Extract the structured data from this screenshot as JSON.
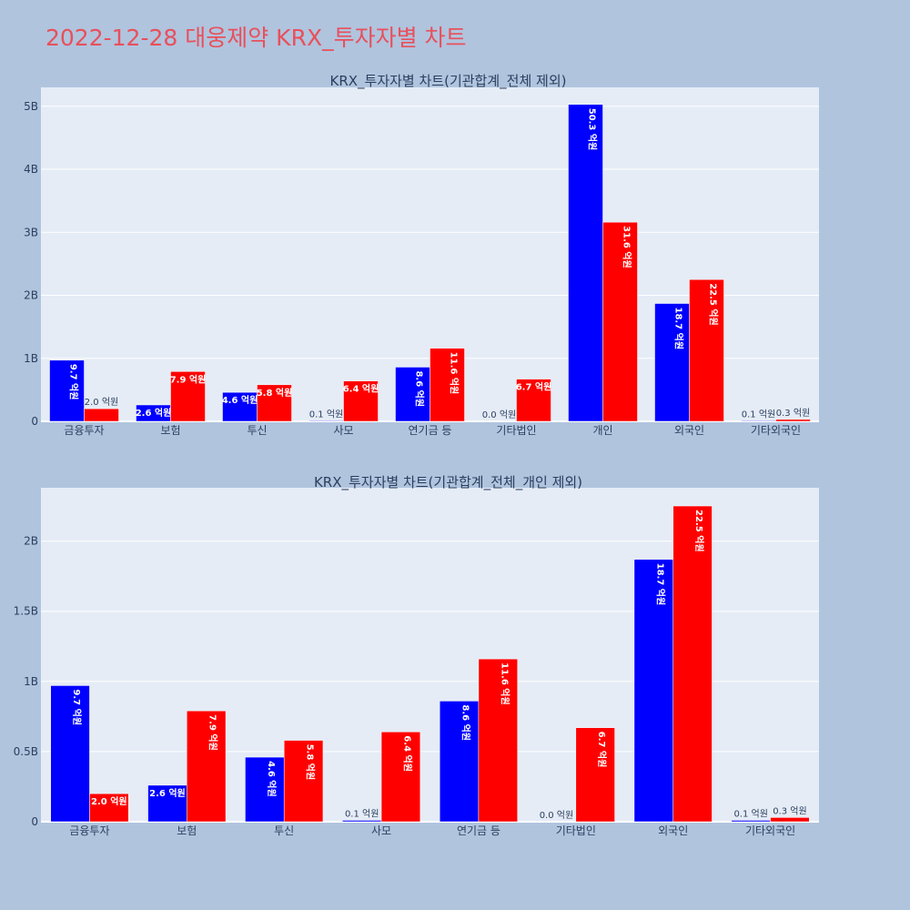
{
  "page": {
    "title": "2022-12-28 대웅제약 KRX_투자자별 차트"
  },
  "colors": {
    "background": "#b0c4de",
    "plot_bg": "#e5ecf6",
    "title": "#e8505b",
    "buy": "#0000ff",
    "sell": "#ff0000",
    "grid": "#ffffff",
    "text": "#2a3f5f"
  },
  "chart_data": [
    {
      "type": "bar",
      "title": "KRX_투자자별 차트(기관합계_전체 제외)",
      "categories": [
        "금융투자",
        "보험",
        "투신",
        "사모",
        "연기금 등",
        "기타법인",
        "개인",
        "외국인",
        "기타외국인"
      ],
      "series": [
        {
          "color": "#0000ff",
          "values": [
            970000000,
            260000000,
            460000000,
            10000000,
            860000000,
            0,
            5030000000,
            1870000000,
            10000000
          ],
          "labels": [
            "9.7 억원",
            "2.6 억원",
            "4.6 억원",
            "0.1 억원",
            "8.6 억원",
            "0.0 억원",
            "50.3 억원",
            "18.7 억원",
            "0.1 억원"
          ]
        },
        {
          "color": "#ff0000",
          "values": [
            200000000,
            790000000,
            580000000,
            640000000,
            1160000000,
            670000000,
            3160000000,
            2250000000,
            30000000
          ],
          "labels": [
            "2.0 억원",
            "7.9 억원",
            "5.8 억원",
            "6.4 억원",
            "11.6 억원",
            "6.7 억원",
            "31.6 억원",
            "22.5 억원",
            "0.3 억원"
          ]
        }
      ],
      "ylim": [
        0,
        5300000000
      ],
      "yticks": [
        0,
        1000000000,
        2000000000,
        3000000000,
        4000000000,
        5000000000
      ],
      "ytick_labels": [
        "0",
        "1B",
        "2B",
        "3B",
        "4B",
        "5B"
      ],
      "grid": true
    },
    {
      "type": "bar",
      "title": "KRX_투자자별 차트(기관합계_전체_개인 제외)",
      "categories": [
        "금융투자",
        "보험",
        "투신",
        "사모",
        "연기금 등",
        "기타법인",
        "외국인",
        "기타외국인"
      ],
      "series": [
        {
          "color": "#0000ff",
          "values": [
            970000000,
            260000000,
            460000000,
            10000000,
            860000000,
            0,
            1870000000,
            10000000
          ],
          "labels": [
            "9.7 억원",
            "2.6 억원",
            "4.6 억원",
            "0.1 억원",
            "8.6 억원",
            "0.0 억원",
            "18.7 억원",
            "0.1 억원"
          ]
        },
        {
          "color": "#ff0000",
          "values": [
            200000000,
            790000000,
            580000000,
            640000000,
            1160000000,
            670000000,
            2250000000,
            30000000
          ],
          "labels": [
            "2.0 억원",
            "7.9 억원",
            "5.8 억원",
            "6.4 억원",
            "11.6 억원",
            "6.7 억원",
            "22.5 억원",
            "0.3 억원"
          ]
        }
      ],
      "ylim": [
        0,
        2380000000
      ],
      "yticks": [
        0,
        500000000,
        1000000000,
        1500000000,
        2000000000
      ],
      "ytick_labels": [
        "0",
        "0.5B",
        "1B",
        "1.5B",
        "2B"
      ],
      "grid": true
    }
  ]
}
